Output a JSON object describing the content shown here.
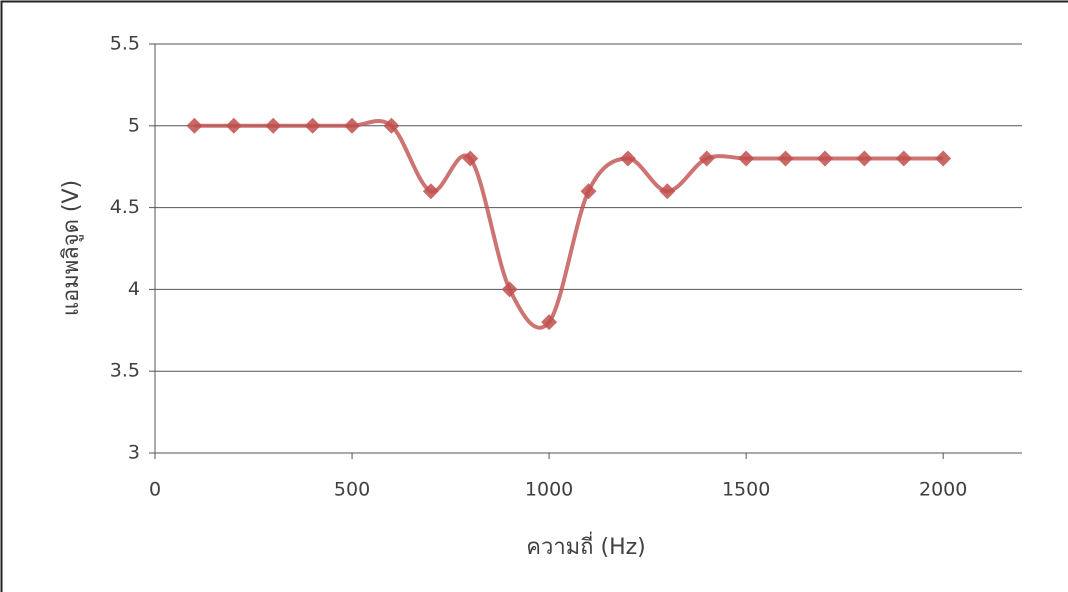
{
  "chart_data": {
    "type": "line",
    "x_label": "ความถี่ (Hz)",
    "y_label": "แอมพลิจูด (V)",
    "x": [
      100,
      200,
      300,
      400,
      500,
      600,
      700,
      800,
      900,
      1000,
      1100,
      1200,
      1300,
      1400,
      1500,
      1600,
      1700,
      1800,
      1900,
      2000
    ],
    "series": [
      {
        "name": "",
        "color": "#c0504d",
        "values": [
          5,
          5,
          5,
          5,
          5,
          5,
          4.6,
          4.8,
          4.0,
          3.8,
          4.6,
          4.8,
          4.6,
          4.8,
          4.8,
          4.8,
          4.8,
          4.8,
          4.8,
          4.8
        ]
      }
    ],
    "xlim": [
      0,
      2200
    ],
    "xticks": [
      0,
      500,
      1000,
      1500,
      2000
    ],
    "ylim": [
      3,
      5.5
    ],
    "yticks": [
      3,
      3.5,
      4,
      4.5,
      5,
      5.5
    ],
    "grid": true,
    "smooth": true
  }
}
